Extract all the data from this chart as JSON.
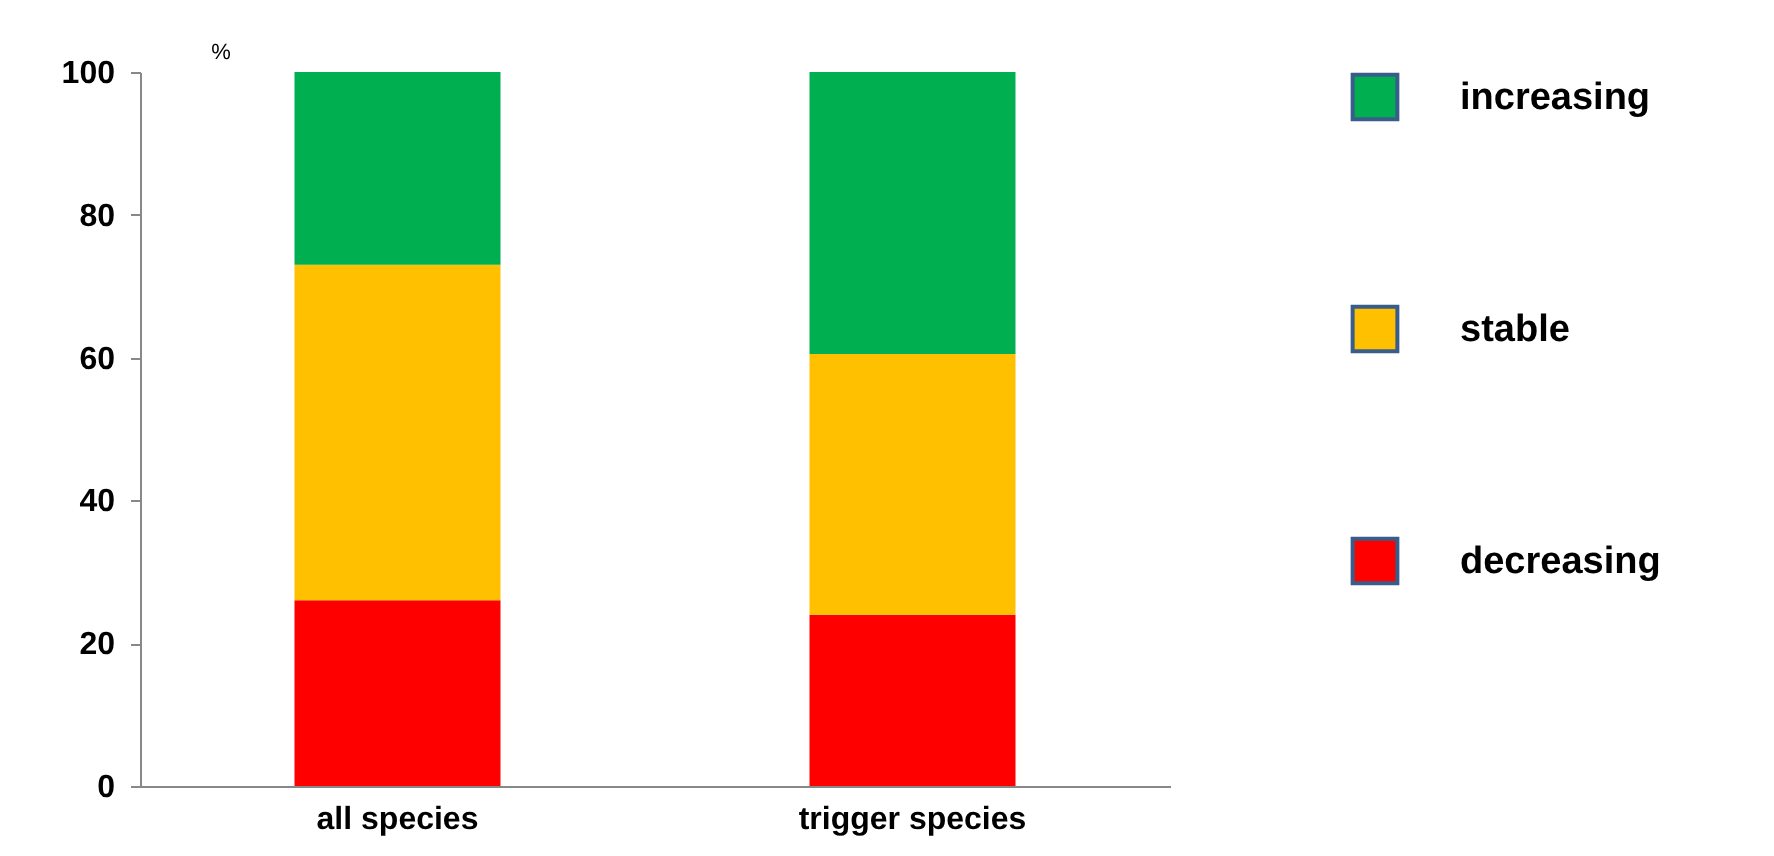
{
  "chart_data": {
    "type": "bar",
    "stacked": true,
    "ylabel": "%",
    "categories": [
      "all species",
      "trigger species"
    ],
    "series": [
      {
        "name": "decreasing",
        "color": "#ff0000",
        "values": [
          26,
          24
        ]
      },
      {
        "name": "stable",
        "color": "#ffc000",
        "values": [
          47,
          36.5
        ]
      },
      {
        "name": "increasing",
        "color": "#00b050",
        "values": [
          27,
          39.5
        ]
      }
    ],
    "ylim": [
      0,
      100
    ],
    "yticks": [
      0,
      20,
      40,
      60,
      80,
      100
    ],
    "grid": false,
    "legend": "right"
  }
}
